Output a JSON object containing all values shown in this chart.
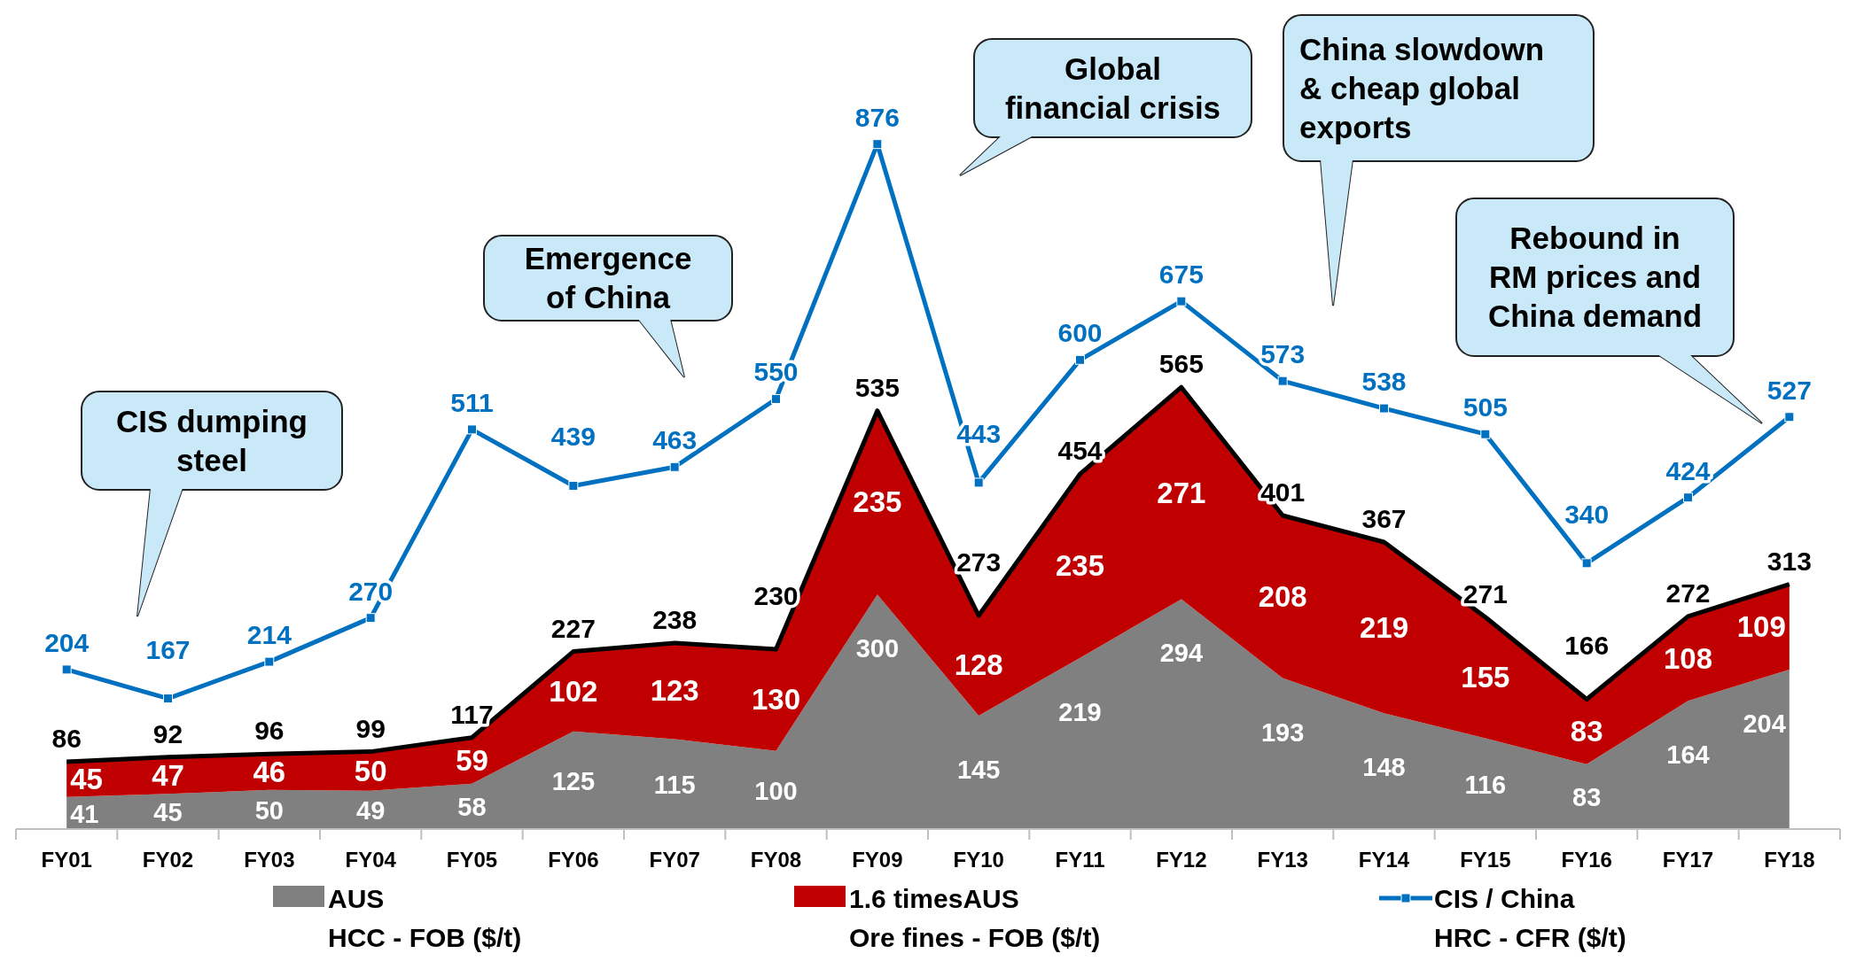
{
  "chart_data": {
    "type": "area",
    "stacked": true,
    "data_labels": true,
    "legend": "bottom",
    "categories": [
      "FY01",
      "FY02",
      "FY03",
      "FY04",
      "FY05",
      "FY06",
      "FY07",
      "FY08",
      "FY09",
      "FY10",
      "FY11",
      "FY12",
      "FY13",
      "FY14",
      "FY15",
      "FY16",
      "FY17",
      "FY18"
    ],
    "series": [
      {
        "name": "AUS\nHCC - FOB ($/t)",
        "color": "#808080",
        "values": [
          41,
          45,
          50,
          49,
          58,
          125,
          115,
          100,
          300,
          145,
          219,
          294,
          193,
          148,
          116,
          83,
          164,
          204
        ]
      },
      {
        "name": "1.6 timesAUS\nOre fines - FOB ($/t)",
        "color": "#c00000",
        "values": [
          45,
          47,
          46,
          50,
          59,
          102,
          123,
          130,
          235,
          128,
          235,
          271,
          208,
          219,
          155,
          83,
          108,
          109
        ]
      },
      {
        "name": "CIS / China\nHRC - CFR ($/t)",
        "type": "line",
        "marker": "square",
        "color": "#0070c0",
        "values": [
          204,
          167,
          214,
          270,
          511,
          439,
          463,
          550,
          876,
          443,
          600,
          675,
          573,
          538,
          505,
          340,
          424,
          527
        ]
      }
    ],
    "totals": [
      "86",
      "92",
      "96",
      "99",
      "117",
      "227",
      "238",
      "230",
      "535",
      "273",
      "454",
      "565",
      "401",
      "367",
      "271",
      "166",
      "272",
      "313"
    ],
    "annotations": [
      "CIS dumping\nsteel",
      "Emergence\nof China",
      "Global\nfinancial crisis",
      "China slowdown\n& cheap global\nexports",
      "Rebound in\nRM prices and\nChina demand"
    ]
  }
}
